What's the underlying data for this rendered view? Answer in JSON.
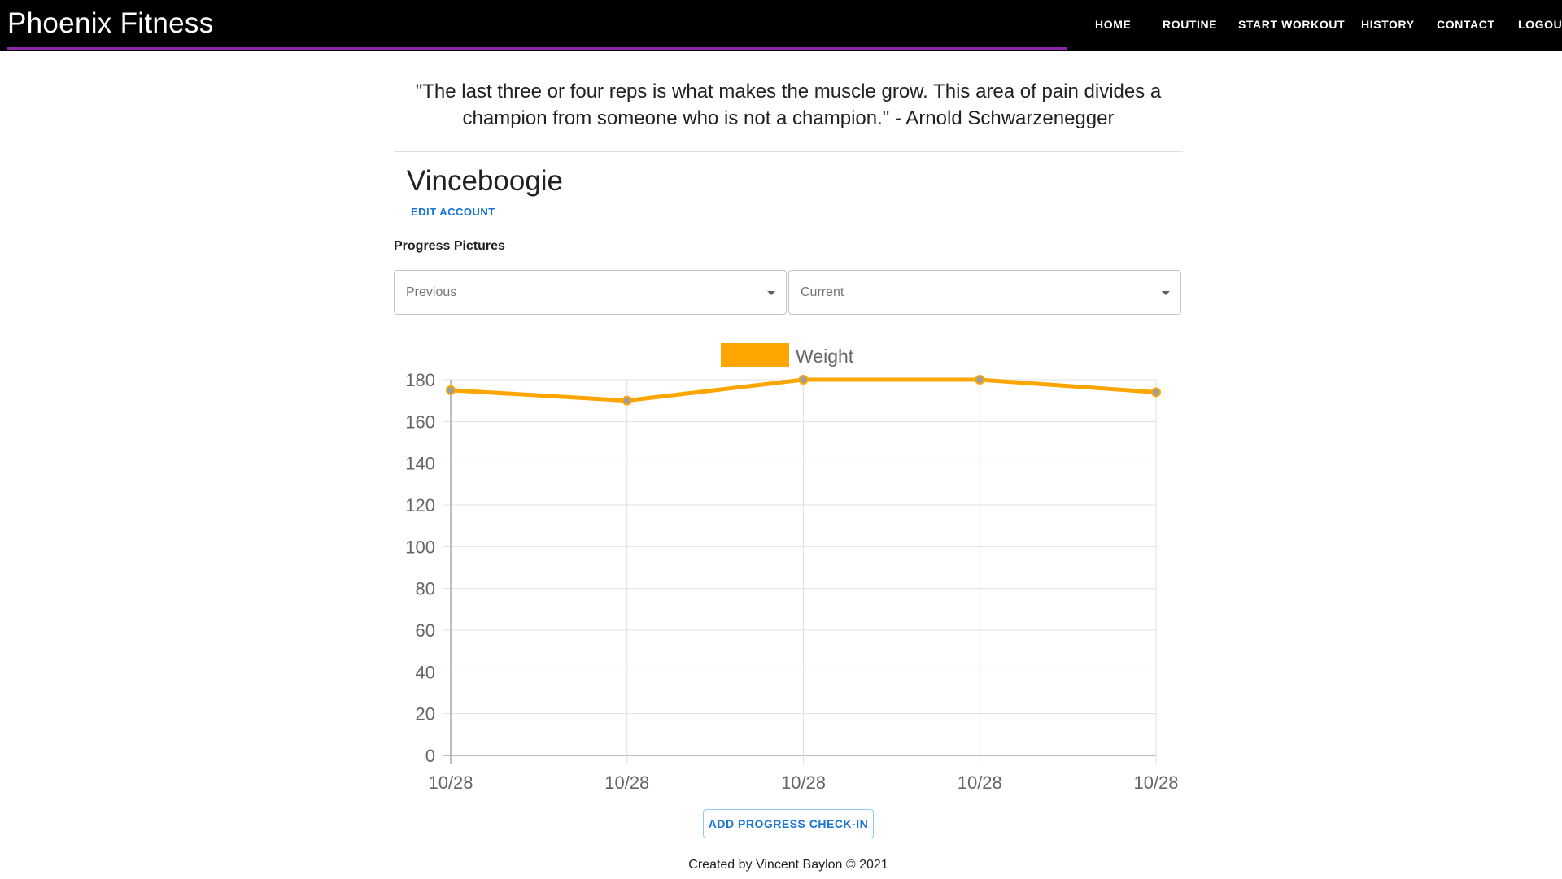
{
  "app": {
    "title": "Phoenix Fitness"
  },
  "colors": {
    "navbar": "#000000",
    "accent_underline": "#8e24aa",
    "link": "#1976d2",
    "series": "#ffa500"
  },
  "nav": {
    "items": [
      {
        "label": "HOME"
      },
      {
        "label": "ROUTINE"
      },
      {
        "label": "START WORKOUT"
      },
      {
        "label": "HISTORY"
      },
      {
        "label": "CONTACT"
      },
      {
        "label": "LOGOUT"
      }
    ]
  },
  "quote": {
    "text": "\"The last three or four reps is what makes the muscle grow. This area of pain divides a champion from someone who is not a champion.\" - Arnold Schwarzenegger"
  },
  "profile": {
    "username": "Vinceboogie",
    "edit_label": "EDIT ACCOUNT"
  },
  "progress": {
    "section_label": "Progress Pictures",
    "previous_select": {
      "label": "Previous"
    },
    "current_select": {
      "label": "Current"
    },
    "add_button_label": "ADD PROGRESS CHECK-IN"
  },
  "chart_data": {
    "type": "line",
    "categories": [
      "10/28",
      "10/28",
      "10/28",
      "10/28",
      "10/28"
    ],
    "series": [
      {
        "name": "Weight",
        "values": [
          175,
          170,
          180,
          180,
          174
        ],
        "color": "#ffa500"
      }
    ],
    "y_ticks": [
      "0",
      "20",
      "40",
      "60",
      "80",
      "100",
      "120",
      "140",
      "160",
      "180"
    ],
    "ylim": [
      0,
      180
    ],
    "grid": true,
    "legend": "top-center"
  },
  "footer": {
    "text": "Created by Vincent Baylon © 2021"
  }
}
